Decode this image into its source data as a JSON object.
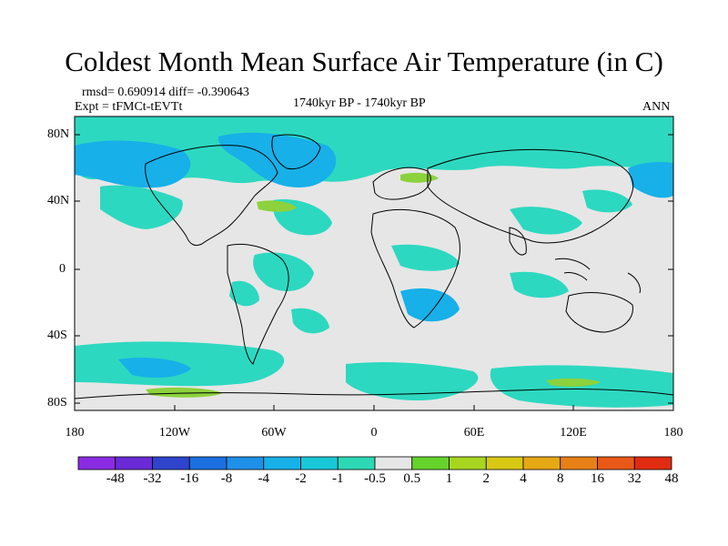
{
  "header": {
    "title": "Coldest Month Mean Surface Air Temperature (in C)",
    "stats": "rmsd= 0.690914 diff= -0.390643",
    "expt": "Expt = tFMCt-tEVTt",
    "period": "1740kyr BP - 1740kyr BP",
    "season": "ANN"
  },
  "axes": {
    "y_ticks": [
      "80N",
      "40N",
      "0",
      "40S",
      "80S"
    ],
    "x_ticks": [
      "180",
      "120W",
      "60W",
      "0",
      "60E",
      "120E",
      "180"
    ]
  },
  "colorbar": {
    "labels": [
      "-48",
      "-32",
      "-16",
      "-8",
      "-4",
      "-2",
      "-1",
      "-0.5",
      "0.5",
      "1",
      "2",
      "4",
      "8",
      "16",
      "32",
      "48"
    ],
    "colors": [
      "#8a2be2",
      "#6a2bd6",
      "#2f44cc",
      "#1c6fe0",
      "#1e90e8",
      "#17b0e8",
      "#19c8d8",
      "#2dd8b4",
      "#e6e6e6",
      "#66d22c",
      "#a8d620",
      "#d8c814",
      "#e6a814",
      "#e88018",
      "#e85818",
      "#e02c10"
    ]
  },
  "colors": {
    "land_ocean_background": "#e6e6e6",
    "anomaly_cyan": "#2dd8c0",
    "anomaly_blue": "#17b0e8",
    "anomaly_green": "#8cd23c"
  }
}
